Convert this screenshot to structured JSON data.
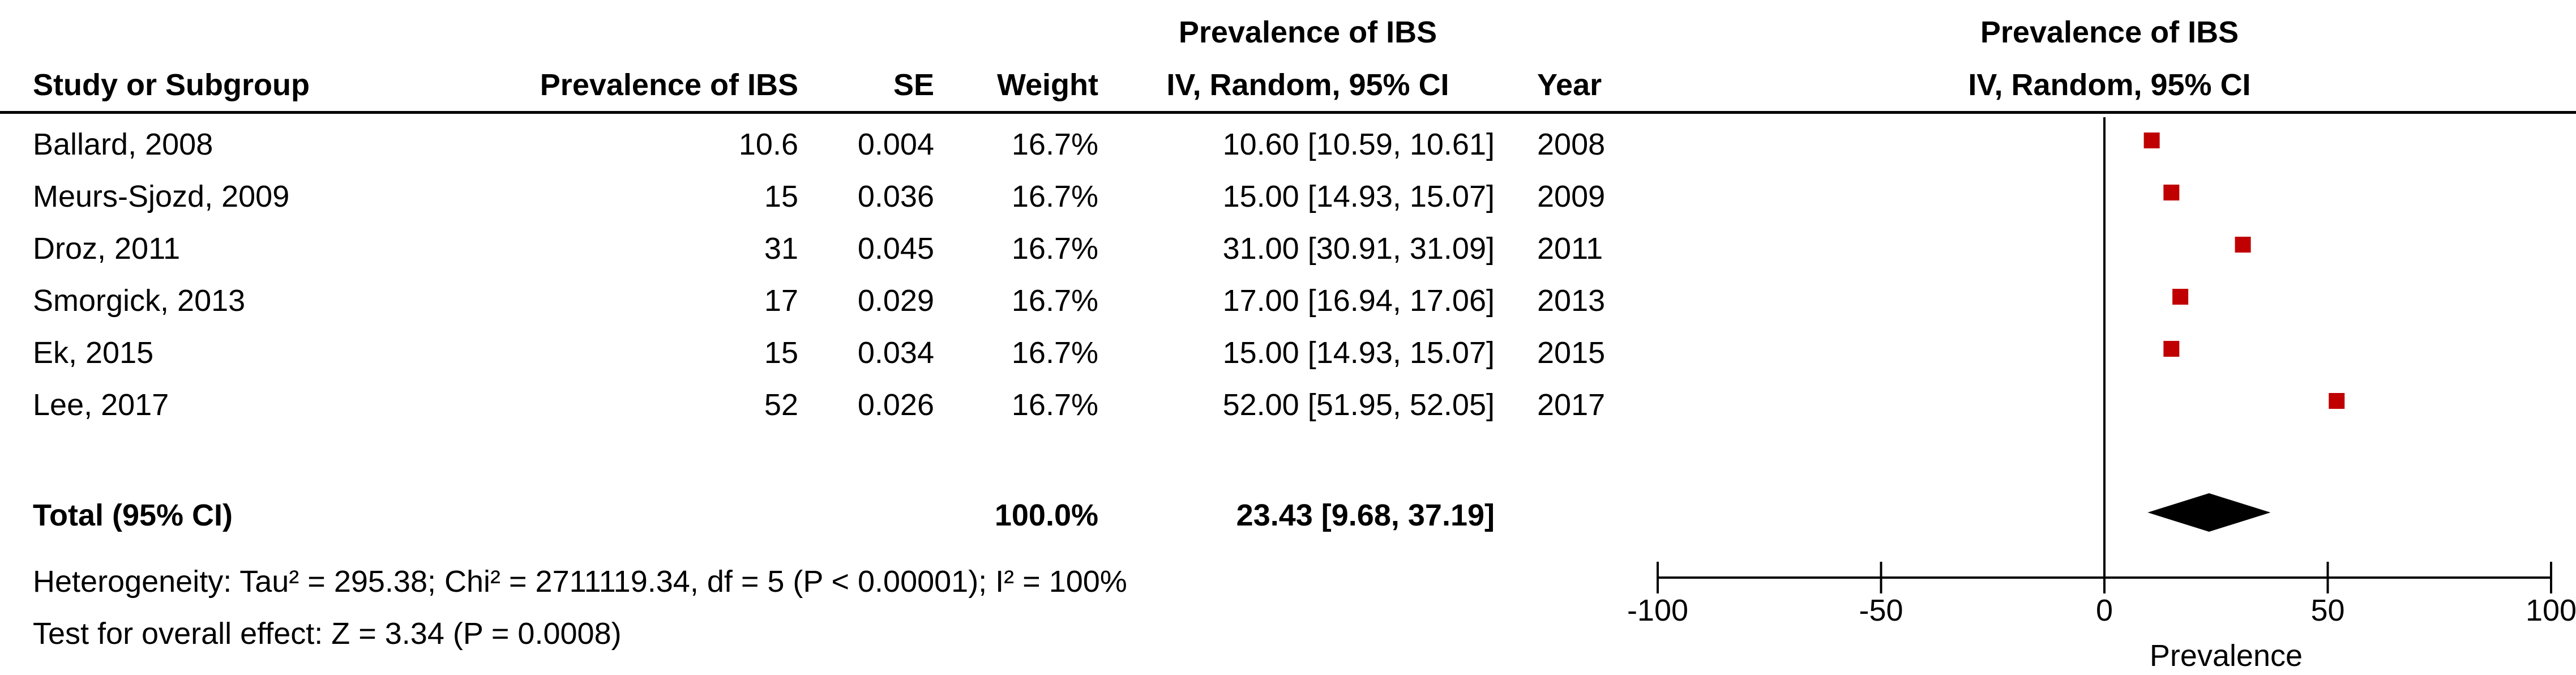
{
  "headers": {
    "study": "Study or Subgroup",
    "prevalence": "Prevalence of IBS",
    "se": "SE",
    "weight": "Weight",
    "ci_title": "Prevalence of IBS",
    "ci_subtitle": "IV, Random, 95% CI",
    "year": "Year",
    "plot_title": "Prevalence of IBS",
    "plot_subtitle": "IV, Random, 95% CI"
  },
  "studies": [
    {
      "name": "Ballard, 2008",
      "prevalence": "10.6",
      "se": "0.004",
      "weight": "16.7%",
      "ci": "10.60 [10.59, 10.61]",
      "year": "2008"
    },
    {
      "name": "Meurs-Sjozd, 2009",
      "prevalence": "15",
      "se": "0.036",
      "weight": "16.7%",
      "ci": "15.00 [14.93, 15.07]",
      "year": "2009"
    },
    {
      "name": "Droz, 2011",
      "prevalence": "31",
      "se": "0.045",
      "weight": "16.7%",
      "ci": "31.00 [30.91, 31.09]",
      "year": "2011"
    },
    {
      "name": "Smorgick, 2013",
      "prevalence": "17",
      "se": "0.029",
      "weight": "16.7%",
      "ci": "17.00 [16.94, 17.06]",
      "year": "2013"
    },
    {
      "name": "Ek, 2015",
      "prevalence": "15",
      "se": "0.034",
      "weight": "16.7%",
      "ci": "15.00 [14.93, 15.07]",
      "year": "2015"
    },
    {
      "name": "Lee, 2017",
      "prevalence": "52",
      "se": "0.026",
      "weight": "16.7%",
      "ci": "52.00 [51.95, 52.05]",
      "year": "2017"
    }
  ],
  "total": {
    "label": "Total (95% CI)",
    "weight": "100.0%",
    "ci": "23.43 [9.68, 37.19]"
  },
  "heterogeneity": "Heterogeneity: Tau² = 295.38; Chi² = 2711119.34, df = 5 (P < 0.00001); I² = 100%",
  "overall_effect": "Test for overall effect: Z = 3.34 (P = 0.0008)",
  "colors": {
    "marker": "#c00000",
    "diamond": "#000000",
    "text": "#000000"
  },
  "chart_data": {
    "type": "scatter",
    "subtype": "forest-plot",
    "title": "Prevalence of IBS",
    "subtitle": "IV, Random, 95% CI",
    "xlabel": "Prevalence",
    "xlim": [
      -100,
      100
    ],
    "xticks": [
      -100,
      -50,
      0,
      50,
      100
    ],
    "xtick_labels": [
      "-100",
      "-50",
      "0",
      "50",
      "100"
    ],
    "reference_line": 0,
    "series": [
      {
        "points": [
          {
            "label": "Ballard, 2008",
            "estimate": 10.6,
            "lower": 10.59,
            "upper": 10.61
          },
          {
            "label": "Meurs-Sjozd, 2009",
            "estimate": 15.0,
            "lower": 14.93,
            "upper": 15.07
          },
          {
            "label": "Droz, 2011",
            "estimate": 31.0,
            "lower": 30.91,
            "upper": 31.09
          },
          {
            "label": "Smorgick, 2013",
            "estimate": 17.0,
            "lower": 16.94,
            "upper": 17.06
          },
          {
            "label": "Ek, 2015",
            "estimate": 15.0,
            "lower": 14.93,
            "upper": 15.07
          },
          {
            "label": "Lee, 2017",
            "estimate": 52.0,
            "lower": 51.95,
            "upper": 52.05
          }
        ]
      }
    ],
    "pooled": {
      "label": "Total (95% CI)",
      "estimate": 23.43,
      "lower": 9.68,
      "upper": 37.19
    }
  }
}
